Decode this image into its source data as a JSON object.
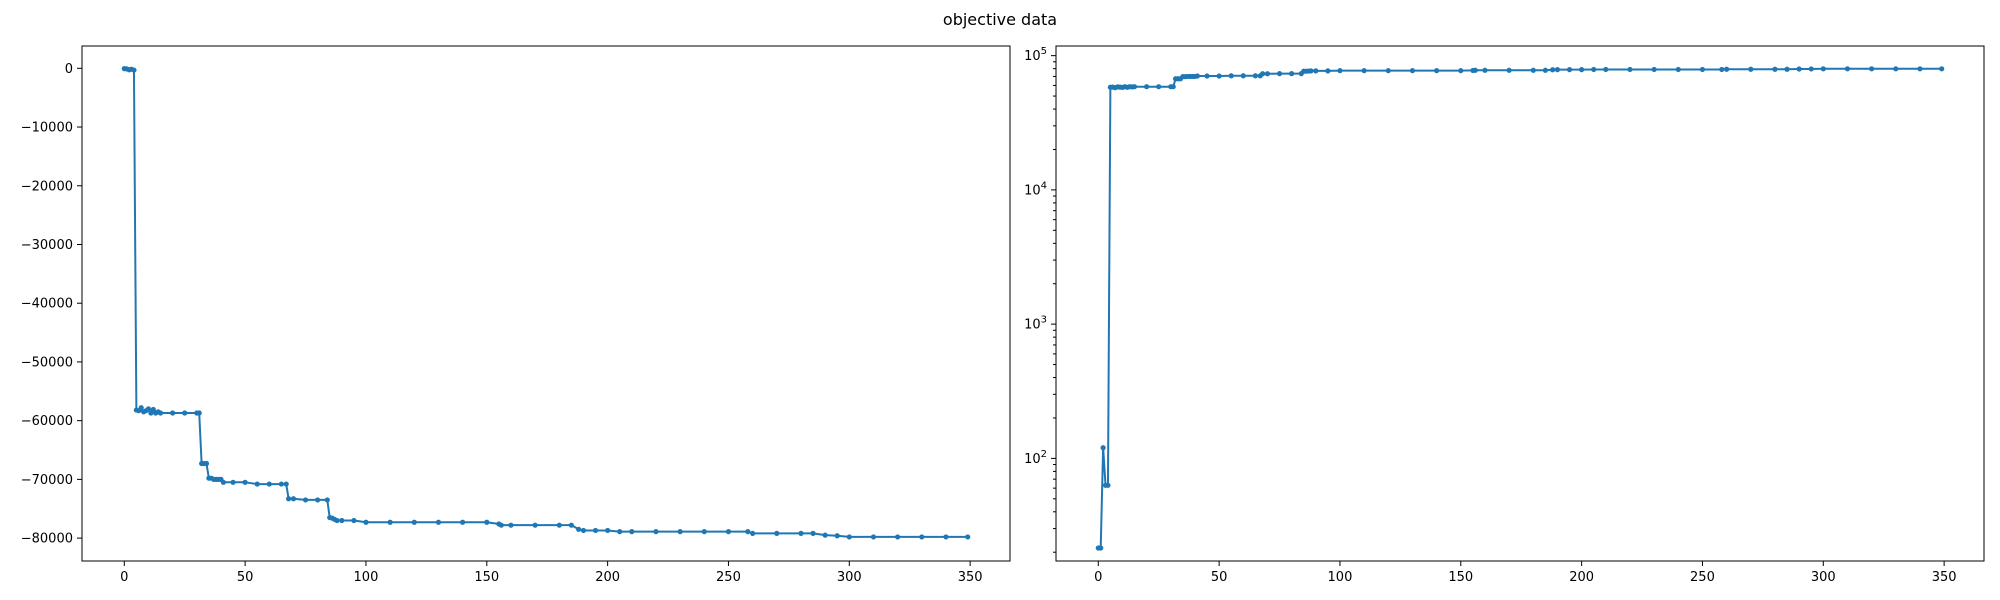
{
  "figure": {
    "suptitle": "objective data"
  },
  "chart_data": [
    {
      "type": "line",
      "title": "",
      "xlabel": "",
      "ylabel": "",
      "xlim": [
        -17.5,
        366.5
      ],
      "ylim": [
        -83900,
        3800
      ],
      "yscale": "linear",
      "grid": false,
      "legend": "none",
      "color": "#1f77b4",
      "marker": "dot",
      "xticks": [
        0,
        50,
        100,
        150,
        200,
        250,
        300,
        350
      ],
      "xtick_labels": [
        "0",
        "50",
        "100",
        "150",
        "200",
        "250",
        "300",
        "350"
      ],
      "yticks": [
        0,
        -10000,
        -20000,
        -30000,
        -40000,
        -50000,
        -60000,
        -70000,
        -80000
      ],
      "ytick_labels": [
        "0",
        "−10000",
        "−20000",
        "−30000",
        "−40000",
        "−50000",
        "−60000",
        "−70000",
        "−80000"
      ],
      "series": [
        {
          "x": [
            0,
            1,
            2,
            3,
            4,
            5,
            6,
            7,
            8,
            9,
            10,
            11,
            12,
            13,
            14,
            15,
            20,
            25,
            30,
            31,
            32,
            33,
            34,
            35,
            36,
            37,
            38,
            39,
            40,
            41,
            45,
            50,
            55,
            60,
            65,
            67,
            68,
            70,
            75,
            80,
            84,
            85,
            86,
            87,
            88,
            90,
            95,
            100,
            110,
            120,
            130,
            140,
            150,
            155,
            156,
            160,
            170,
            180,
            185,
            188,
            190,
            195,
            200,
            205,
            210,
            220,
            230,
            240,
            250,
            258,
            260,
            270,
            280,
            285,
            290,
            295,
            300,
            310,
            320,
            330,
            340,
            349
          ],
          "y": [
            -50,
            -100,
            -250,
            -150,
            -300,
            -58200,
            -58300,
            -57800,
            -58500,
            -58300,
            -58000,
            -58700,
            -58100,
            -58700,
            -58500,
            -58700,
            -58700,
            -58700,
            -58700,
            -58700,
            -67300,
            -67300,
            -67300,
            -69800,
            -69800,
            -70000,
            -70000,
            -70000,
            -70000,
            -70500,
            -70500,
            -70500,
            -70800,
            -70800,
            -70800,
            -70800,
            -73300,
            -73300,
            -73500,
            -73500,
            -73500,
            -76500,
            -76600,
            -76800,
            -77000,
            -77000,
            -77000,
            -77300,
            -77300,
            -77300,
            -77300,
            -77300,
            -77300,
            -77600,
            -77800,
            -77800,
            -77800,
            -77800,
            -77800,
            -78500,
            -78700,
            -78700,
            -78700,
            -78900,
            -78900,
            -78900,
            -78900,
            -78900,
            -78900,
            -78900,
            -79200,
            -79200,
            -79200,
            -79200,
            -79500,
            -79600,
            -79800,
            -79800,
            -79800,
            -79800,
            -79800,
            -79800
          ]
        }
      ]
    },
    {
      "type": "line",
      "title": "",
      "xlabel": "",
      "ylabel": "",
      "xlim": [
        -17.5,
        366.5
      ],
      "ylim": [
        17.2,
        118000
      ],
      "yscale": "log",
      "grid": false,
      "legend": "none",
      "color": "#1f77b4",
      "marker": "dot",
      "xticks": [
        0,
        50,
        100,
        150,
        200,
        250,
        300,
        350
      ],
      "xtick_labels": [
        "0",
        "50",
        "100",
        "150",
        "200",
        "250",
        "300",
        "350"
      ],
      "yticks": [
        100,
        1000,
        10000,
        100000
      ],
      "ytick_base": "10",
      "ytick_exponents": [
        "2",
        "3",
        "4",
        "5"
      ],
      "series": [
        {
          "x": [
            0,
            1,
            2,
            3,
            4,
            5,
            6,
            7,
            8,
            9,
            10,
            11,
            12,
            13,
            14,
            15,
            20,
            25,
            30,
            31,
            32,
            33,
            34,
            35,
            36,
            37,
            38,
            39,
            40,
            41,
            45,
            50,
            55,
            60,
            65,
            67,
            68,
            70,
            75,
            80,
            84,
            85,
            86,
            87,
            88,
            90,
            95,
            100,
            110,
            120,
            130,
            140,
            150,
            155,
            156,
            160,
            170,
            180,
            185,
            188,
            190,
            195,
            200,
            205,
            210,
            220,
            230,
            240,
            250,
            258,
            260,
            270,
            280,
            285,
            290,
            295,
            300,
            310,
            320,
            330,
            340,
            349
          ],
          "y": [
            21.5,
            21.5,
            120,
            63,
            63,
            58200,
            58300,
            57800,
            58500,
            58300,
            58000,
            58700,
            58100,
            58700,
            58500,
            58700,
            58700,
            58700,
            58700,
            58700,
            67300,
            67300,
            67300,
            69800,
            69800,
            70000,
            70000,
            70000,
            70000,
            70500,
            70500,
            70500,
            70800,
            70800,
            70800,
            70800,
            73300,
            73300,
            73500,
            73500,
            73500,
            76500,
            76600,
            76800,
            77000,
            77000,
            77000,
            77300,
            77300,
            77300,
            77300,
            77300,
            77300,
            77600,
            77800,
            77800,
            77800,
            77800,
            77800,
            78500,
            78700,
            78700,
            78700,
            78900,
            78900,
            78900,
            78900,
            78900,
            78900,
            78900,
            79200,
            79200,
            79200,
            79200,
            79500,
            79600,
            79800,
            79800,
            79800,
            79800,
            79800,
            79800
          ]
        }
      ]
    }
  ]
}
